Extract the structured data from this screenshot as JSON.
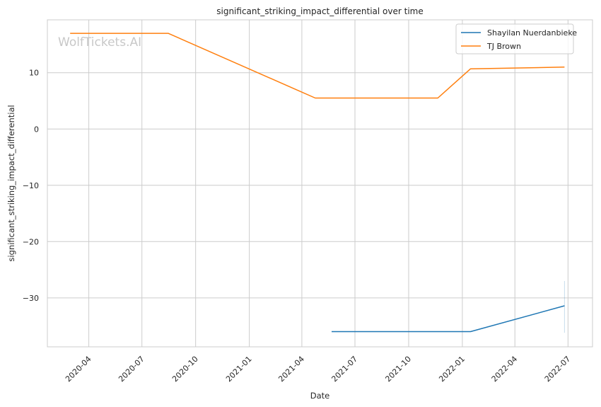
{
  "chart_data": {
    "type": "line",
    "title": "significant_striking_impact_differential over time",
    "xlabel": "Date",
    "ylabel": "significant_striking_impact_differential",
    "watermark": "WolfTickets.AI",
    "x_ticks": [
      "2020-04",
      "2020-07",
      "2020-10",
      "2021-01",
      "2021-04",
      "2021-07",
      "2021-10",
      "2022-01",
      "2022-04",
      "2022-07"
    ],
    "y_ticks": [
      10,
      0,
      -10,
      -20,
      -30
    ],
    "y_tick_labels": [
      "10",
      "0",
      "−10",
      "−20",
      "−30"
    ],
    "xlim": [
      "2020-01-21",
      "2022-08-12"
    ],
    "ylim": [
      -38.7,
      19.4
    ],
    "grid": true,
    "legend_position": "top-right",
    "series": [
      {
        "name": "Shayilan Nuerdanbieke",
        "color": "#1f77b4",
        "x": [
          "2021-05-22",
          "2022-01-15",
          "2022-06-25"
        ],
        "y": [
          -36.0,
          -36.0,
          -31.4
        ]
      },
      {
        "name": "TJ Brown",
        "color": "#ff7f0e",
        "x": [
          "2020-02-29",
          "2020-08-15",
          "2021-04-24",
          "2021-11-20",
          "2022-01-15",
          "2022-06-25"
        ],
        "y": [
          17.0,
          17.0,
          5.5,
          5.5,
          10.7,
          11.0
        ]
      }
    ]
  }
}
